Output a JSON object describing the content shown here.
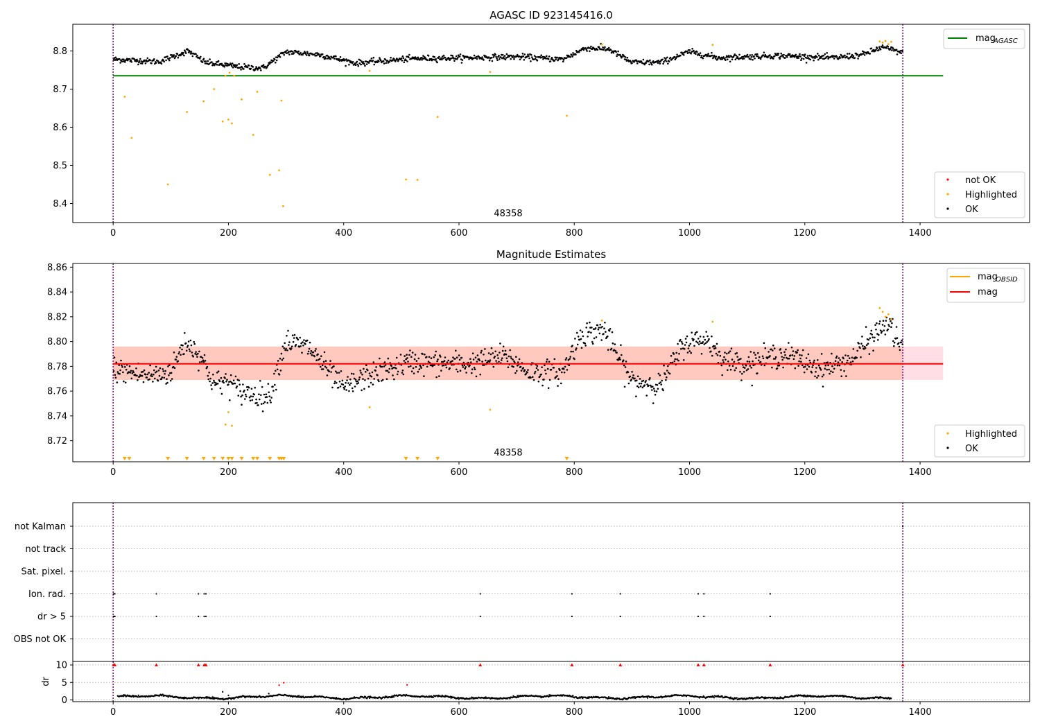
{
  "chart_data": [
    {
      "type": "scatter",
      "title": "AGASC ID 923145416.0",
      "annotation": "48358",
      "xlim": [
        -70,
        1590
      ],
      "ylim": [
        8.35,
        8.87
      ],
      "xticks": [
        0,
        200,
        400,
        600,
        800,
        1000,
        1200,
        1400
      ],
      "yticks": [
        8.4,
        8.5,
        8.6,
        8.7,
        8.8
      ],
      "ytick_labels": [
        "8.4",
        "8.5",
        "8.6",
        "8.7",
        "8.8"
      ],
      "xlabel": "",
      "ylabel": "",
      "vlines": [
        0,
        1370
      ],
      "hline": {
        "value": 8.735,
        "x_range": [
          0,
          1440
        ],
        "color": "#008000"
      },
      "legend_upper": {
        "placement": "top-right",
        "entries": [
          {
            "label": "mag",
            "sub": "AGASC",
            "color": "#008000"
          }
        ]
      },
      "legend_lower": {
        "placement": "bottom-right",
        "entries": [
          {
            "label": "not OK",
            "color": "#ff0000"
          },
          {
            "label": "Highlighted",
            "color": "#ffa500"
          },
          {
            "label": "OK",
            "color": "#000000"
          }
        ]
      },
      "series": [
        {
          "name": "OK",
          "color": "#000000",
          "trend": [
            [
              0,
              8.778
            ],
            [
              80,
              8.772
            ],
            [
              130,
              8.8
            ],
            [
              160,
              8.77
            ],
            [
              220,
              8.758
            ],
            [
              260,
              8.755
            ],
            [
              300,
              8.798
            ],
            [
              360,
              8.79
            ],
            [
              420,
              8.768
            ],
            [
              520,
              8.78
            ],
            [
              600,
              8.782
            ],
            [
              700,
              8.785
            ],
            [
              780,
              8.778
            ],
            [
              820,
              8.808
            ],
            [
              860,
              8.805
            ],
            [
              900,
              8.77
            ],
            [
              950,
              8.77
            ],
            [
              1000,
              8.798
            ],
            [
              1050,
              8.782
            ],
            [
              1150,
              8.788
            ],
            [
              1250,
              8.782
            ],
            [
              1300,
              8.79
            ],
            [
              1335,
              8.81
            ],
            [
              1370,
              8.795
            ]
          ],
          "scatter": 0.007
        },
        {
          "name": "Highlighted",
          "color": "#ffa500",
          "points": [
            [
              20,
              8.68
            ],
            [
              32,
              8.572
            ],
            [
              95,
              8.45
            ],
            [
              128,
              8.64
            ],
            [
              157,
              8.668
            ],
            [
              175,
              8.7
            ],
            [
              190,
              8.615
            ],
            [
              195,
              8.735
            ],
            [
              200,
              8.62
            ],
            [
              202,
              8.743
            ],
            [
              206,
              8.61
            ],
            [
              210,
              8.735
            ],
            [
              223,
              8.673
            ],
            [
              243,
              8.58
            ],
            [
              250,
              8.693
            ],
            [
              272,
              8.475
            ],
            [
              288,
              8.487
            ],
            [
              292,
              8.67
            ],
            [
              295,
              8.393
            ],
            [
              445,
              8.748
            ],
            [
              508,
              8.463
            ],
            [
              528,
              8.462
            ],
            [
              563,
              8.627
            ],
            [
              654,
              8.745
            ],
            [
              787,
              8.63
            ],
            [
              848,
              8.817
            ],
            [
              1040,
              8.816
            ],
            [
              1330,
              8.825
            ],
            [
              1335,
              8.822
            ],
            [
              1340,
              8.826
            ],
            [
              1345,
              8.818
            ],
            [
              1350,
              8.824
            ]
          ]
        }
      ]
    },
    {
      "type": "scatter",
      "title": "Magnitude Estimates",
      "annotation": "48358",
      "xlim": [
        -70,
        1590
      ],
      "ylim": [
        8.703,
        8.863
      ],
      "xticks": [
        0,
        200,
        400,
        600,
        800,
        1000,
        1200,
        1400
      ],
      "yticks": [
        8.72,
        8.74,
        8.76,
        8.78,
        8.8,
        8.82,
        8.84,
        8.86
      ],
      "ytick_labels": [
        "8.72",
        "8.74",
        "8.76",
        "8.78",
        "8.80",
        "8.82",
        "8.84",
        "8.86"
      ],
      "xlabel": "",
      "ylabel": "",
      "vlines": [
        0,
        1370
      ],
      "mag_line": {
        "value": 8.782,
        "x_range": [
          0,
          1440
        ],
        "color": "#ff0000"
      },
      "band_wide": {
        "low": 8.769,
        "high": 8.796,
        "x_range": [
          0,
          1440
        ],
        "color": "#ffc0cb"
      },
      "band_obsid": {
        "low": 8.769,
        "high": 8.796,
        "x_range": [
          0,
          1370
        ],
        "color": "#ffa07a"
      },
      "legend_upper": {
        "placement": "top-right",
        "entries": [
          {
            "label": "mag",
            "sub": "OBSID",
            "color": "#ffa500"
          },
          {
            "label": "mag",
            "sub": "",
            "color": "#ff0000"
          }
        ]
      },
      "legend_lower": {
        "placement": "bottom-right",
        "entries": [
          {
            "label": "Highlighted",
            "color": "#ffa500"
          },
          {
            "label": "OK",
            "color": "#000000"
          }
        ]
      },
      "below_range_markers": [
        20,
        28,
        95,
        128,
        157,
        175,
        190,
        200,
        206,
        223,
        243,
        250,
        272,
        288,
        292,
        296,
        508,
        528,
        563,
        787
      ],
      "series": [
        {
          "name": "OK",
          "color": "#000000",
          "trend": [
            [
              0,
              8.778
            ],
            [
              60,
              8.772
            ],
            [
              100,
              8.775
            ],
            [
              125,
              8.8
            ],
            [
              150,
              8.79
            ],
            [
              175,
              8.766
            ],
            [
              200,
              8.768
            ],
            [
              220,
              8.76
            ],
            [
              250,
              8.757
            ],
            [
              270,
              8.755
            ],
            [
              300,
              8.8
            ],
            [
              340,
              8.795
            ],
            [
              370,
              8.778
            ],
            [
              400,
              8.762
            ],
            [
              440,
              8.772
            ],
            [
              520,
              8.784
            ],
            [
              560,
              8.782
            ],
            [
              620,
              8.782
            ],
            [
              680,
              8.788
            ],
            [
              720,
              8.776
            ],
            [
              780,
              8.775
            ],
            [
              810,
              8.805
            ],
            [
              850,
              8.81
            ],
            [
              900,
              8.768
            ],
            [
              950,
              8.765
            ],
            [
              990,
              8.798
            ],
            [
              1030,
              8.802
            ],
            [
              1060,
              8.785
            ],
            [
              1100,
              8.782
            ],
            [
              1160,
              8.79
            ],
            [
              1230,
              8.778
            ],
            [
              1280,
              8.785
            ],
            [
              1320,
              8.805
            ],
            [
              1345,
              8.815
            ],
            [
              1370,
              8.792
            ]
          ],
          "scatter": 0.009
        },
        {
          "name": "Highlighted",
          "color": "#ffa500",
          "points": [
            [
              195,
              8.733
            ],
            [
              200,
              8.743
            ],
            [
              206,
              8.732
            ],
            [
              445,
              8.747
            ],
            [
              654,
              8.745
            ],
            [
              848,
              8.817
            ],
            [
              1040,
              8.816
            ],
            [
              1330,
              8.827
            ],
            [
              1335,
              8.824
            ],
            [
              1340,
              8.82
            ],
            [
              1345,
              8.822
            ],
            [
              1350,
              8.818
            ]
          ]
        }
      ]
    },
    {
      "type": "scatter",
      "title": "",
      "xlim": [
        -70,
        1590
      ],
      "xticks": [
        0,
        200,
        400,
        600,
        800,
        1000,
        1200,
        1400
      ],
      "vlines": [
        0,
        1370
      ],
      "flag_categories": [
        "not Kalman",
        "not track",
        "Sat. pixel.",
        "Ion. rad.",
        "dr > 5",
        "OBS not OK"
      ],
      "flag_points": {
        "Ion. rad.": [
          1,
          3,
          75,
          148,
          158,
          161,
          637,
          796,
          880,
          1015,
          1025,
          1140
        ],
        "dr > 5": [
          1,
          3,
          75,
          148,
          158,
          161,
          637,
          796,
          880,
          1015,
          1025,
          1140
        ],
        "not Kalman": [
          1370
        ]
      },
      "dr": {
        "ylabel": "dr",
        "ylim": [
          -0.5,
          11
        ],
        "yticks": [
          0,
          5,
          10
        ],
        "ytick_labels": [
          "0",
          "5",
          "10"
        ],
        "cap": 10,
        "clipped_markers": [
          1,
          3,
          75,
          148,
          158,
          161,
          637,
          796,
          880,
          1015,
          1025,
          1140,
          1370
        ],
        "outliers": [
          [
            190,
            2.3
          ],
          [
            200,
            1.3
          ],
          [
            270,
            1.8
          ],
          [
            288,
            4.2
          ],
          [
            296,
            4.9
          ],
          [
            510,
            4.3
          ]
        ],
        "baseline": 0.8
      }
    }
  ]
}
